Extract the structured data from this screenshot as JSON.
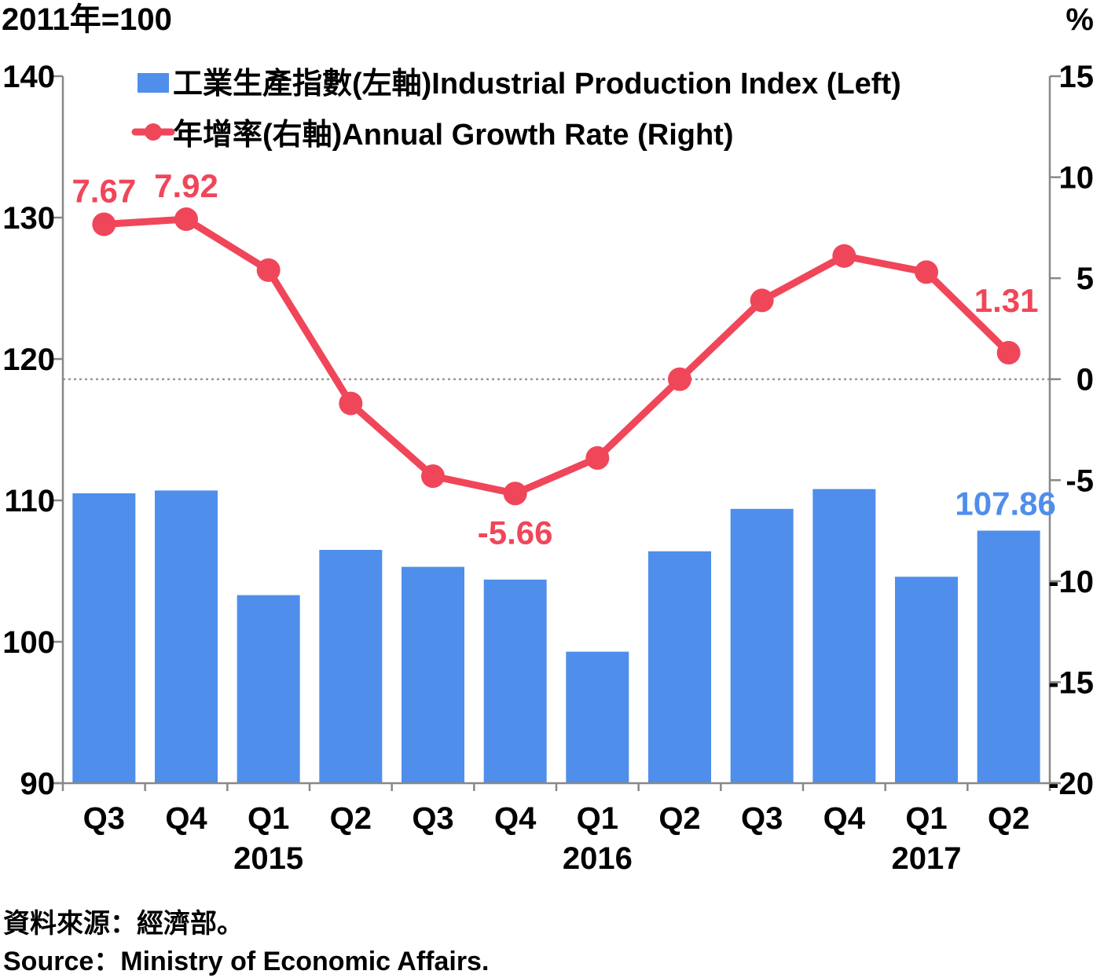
{
  "chart_data": {
    "type": "bar",
    "categories": [
      "Q3",
      "Q4",
      "Q1",
      "Q2",
      "Q3",
      "Q4",
      "Q1",
      "Q2",
      "Q3",
      "Q4",
      "Q1",
      "Q2"
    ],
    "year_labels": [
      {
        "label": "2015",
        "index": 2
      },
      {
        "label": "2016",
        "index": 6
      },
      {
        "label": "2017",
        "index": 10
      }
    ],
    "series": [
      {
        "name": "工業生產指數(左軸)Industrial Production Index (Left)",
        "type": "bar",
        "axis": "left",
        "color": "#4f8eeb",
        "values": [
          110.5,
          110.7,
          103.3,
          106.5,
          105.3,
          104.4,
          99.3,
          106.4,
          109.4,
          110.8,
          104.6,
          107.86
        ]
      },
      {
        "name": "年增率(右軸)Annual Growth Rate (Right)",
        "type": "line",
        "axis": "right",
        "color": "#f0465a",
        "values": [
          7.67,
          7.92,
          5.4,
          -1.2,
          -4.8,
          -5.66,
          -3.9,
          0.0,
          3.9,
          6.1,
          5.3,
          1.31
        ]
      }
    ],
    "data_labels": [
      {
        "series": 1,
        "index": 0,
        "text": "7.67"
      },
      {
        "series": 1,
        "index": 1,
        "text": "7.92"
      },
      {
        "series": 1,
        "index": 5,
        "text": "-5.66"
      },
      {
        "series": 1,
        "index": 11,
        "text": "1.31"
      },
      {
        "series": 0,
        "index": 11,
        "text": "107.86"
      }
    ],
    "left_axis": {
      "unit_label": "2011年=100",
      "ylim": [
        90,
        140
      ],
      "ticks": [
        "90",
        "100",
        "110",
        "120",
        "130",
        "140"
      ]
    },
    "right_axis": {
      "unit_label": "%",
      "ylim": [
        -20,
        15
      ],
      "ticks": [
        "-20",
        "-15",
        "-10",
        "-5",
        "0",
        "5",
        "10",
        "15"
      ]
    },
    "zero_line": "dotted",
    "legend_position": "top"
  },
  "source": {
    "zh": "資料來源：經濟部。",
    "en": "Source：Ministry of Economic Affairs."
  }
}
